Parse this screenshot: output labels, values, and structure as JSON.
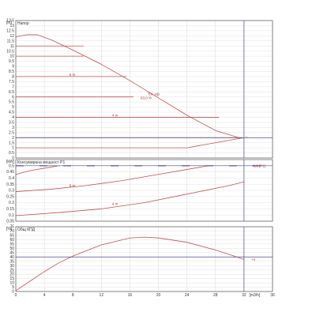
{
  "colors": {
    "curve": "#c0504d",
    "operating_line": "#4a4a8a",
    "frame": "#666666",
    "grid": "#d8d8d8",
    "dash": "#5a2fa8"
  },
  "chart_data": [
    {
      "type": "line",
      "title": "Напор",
      "ylabel": "[m]",
      "xlim": [
        0,
        36
      ],
      "ylim": [
        0,
        13.5
      ],
      "yticks": [
        "0",
        "0.5",
        "1",
        "1.5",
        "2",
        "2.5",
        "3",
        "3.5",
        "4",
        "4.5",
        "5",
        "5.5",
        "6",
        "6.5",
        "7",
        "7.5",
        "8",
        "8.5",
        "9",
        "9.5",
        "10",
        "10.5",
        "11",
        "11.5",
        "12",
        "12.5",
        "13",
        "13.5"
      ],
      "curves": [
        {
          "x": [
            0,
            1.5,
            3,
            5,
            8,
            12,
            16,
            20,
            24,
            28,
            31.5
          ],
          "y": [
            11.9,
            12.1,
            12.1,
            11.6,
            10.6,
            9.2,
            7.6,
            5.9,
            4.2,
            2.7,
            1.95
          ]
        },
        {
          "x": [
            0,
            9.5
          ],
          "y": [
            11.0,
            11.0
          ]
        },
        {
          "x": [
            0,
            9.5
          ],
          "y": [
            10.0,
            10.0
          ]
        },
        {
          "x": [
            0,
            15.5
          ],
          "y": [
            8.0,
            8.0
          ]
        },
        {
          "x": [
            0,
            16.5
          ],
          "y": [
            6.0,
            6.0
          ]
        },
        {
          "x": [
            0,
            28.5
          ],
          "y": [
            4.0,
            4.0
          ]
        },
        {
          "x": [
            0,
            31.5
          ],
          "y": [
            2.0,
            2.0
          ]
        },
        {
          "x": [
            0,
            24,
            32
          ],
          "y": [
            1.0,
            1.0,
            2.0
          ]
        }
      ],
      "labels": [
        {
          "text": "6 m",
          "x": 7.5,
          "y": 8.2
        },
        {
          "text": "Tot. еф.",
          "x": 18.5,
          "y": 6.3
        },
        {
          "text": "63,0 %",
          "x": 17.5,
          "y": 5.9
        },
        {
          "text": "4 m",
          "x": 13.5,
          "y": 4.2
        },
        {
          "text": "+",
          "x": 32.2,
          "y": 2.0
        }
      ],
      "operating_point": {
        "x": 32,
        "y": 2.0
      }
    },
    {
      "type": "line",
      "title": "Консумирана мощност P1",
      "ylabel": "[kW]",
      "xlim": [
        0,
        36
      ],
      "ylim": [
        0.05,
        0.55
      ],
      "yticks": [
        "0.05",
        "0.1",
        "0.15",
        "0.2",
        "0.25",
        "0.3",
        "0.35",
        "0.4",
        "0.45",
        "0.5"
      ],
      "curves": [
        {
          "x": [
            0,
            2,
            4,
            6
          ],
          "y": [
            0.43,
            0.46,
            0.48,
            0.5
          ]
        },
        {
          "x": [
            0,
            5,
            10,
            15,
            20,
            25,
            27
          ],
          "y": [
            0.29,
            0.31,
            0.34,
            0.38,
            0.43,
            0.48,
            0.5
          ]
        },
        {
          "x": [
            0,
            6,
            12,
            18,
            24,
            30,
            32
          ],
          "y": [
            0.095,
            0.12,
            0.15,
            0.2,
            0.27,
            0.34,
            0.37
          ]
        }
      ],
      "dashed_level": 0.5,
      "labels": [
        {
          "text": "6 m",
          "x": 7.5,
          "y": 0.34
        },
        {
          "text": "4 m",
          "x": 13.5,
          "y": 0.19
        },
        {
          "text": "+0,5 [P1]",
          "x": 33,
          "y": 0.5
        }
      ],
      "operating_point": {
        "x": 32,
        "y": 0.5
      }
    },
    {
      "type": "line",
      "title": "Общ КПД",
      "ylabel": "[%]",
      "xlim": [
        0,
        36
      ],
      "ylim": [
        0,
        75
      ],
      "xticks": [
        "0",
        "4",
        "8",
        "12",
        "16",
        "20",
        "24",
        "28",
        "32",
        "36"
      ],
      "xlabel": "[m3/h]",
      "yticks": [
        "0",
        "5",
        "10",
        "15",
        "20",
        "25",
        "30",
        "35",
        "40",
        "45",
        "50",
        "55",
        "60",
        "65",
        "70",
        "75"
      ],
      "curves": [
        {
          "x": [
            0,
            2,
            4,
            6,
            8,
            12,
            16,
            18,
            20,
            24,
            28,
            31,
            32
          ],
          "y": [
            1,
            12,
            23,
            33,
            41,
            54,
            62,
            63,
            62,
            57,
            48,
            40,
            37
          ]
        }
      ],
      "labels": [
        {
          "text": "+4",
          "x": 33,
          "y": 37
        }
      ],
      "operating_point": {
        "x": 32,
        "y": 40
      }
    }
  ]
}
